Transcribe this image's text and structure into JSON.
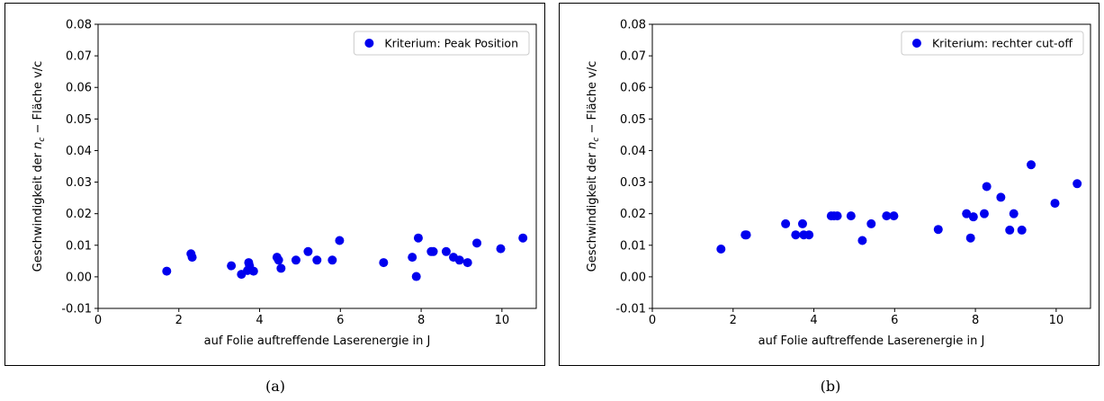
{
  "colors": {
    "marker": "#0000ee",
    "axis": "#000000"
  },
  "chart_data": [
    {
      "type": "scatter",
      "caption": "(a)",
      "xlabel": "auf Folie auftreffende Laserenergie in J",
      "ylabel_pre": "Geschwindigkeit der ",
      "ylabel_var": "n",
      "ylabel_sub": "c",
      "ylabel_post": " − Fläche v/c",
      "xlim": [
        0,
        10.85
      ],
      "ylim": [
        -0.01,
        0.08
      ],
      "xticks": [
        0,
        2,
        4,
        6,
        8,
        10
      ],
      "yticks": [
        -0.01,
        0.0,
        0.01,
        0.02,
        0.03,
        0.04,
        0.05,
        0.06,
        0.07,
        0.08
      ],
      "ytick_labels": [
        "-0.01",
        "0.00",
        "0.01",
        "0.02",
        "0.03",
        "0.04",
        "0.05",
        "0.06",
        "0.07",
        "0.08"
      ],
      "grid": false,
      "legend_position": "top-right",
      "series": [
        {
          "name": "Kriterium: Peak Position",
          "x": [
            1.7,
            2.3,
            2.33,
            3.3,
            3.55,
            3.7,
            3.73,
            3.75,
            3.85,
            4.43,
            4.47,
            4.53,
            4.9,
            5.2,
            5.42,
            5.8,
            5.98,
            7.07,
            7.78,
            7.88,
            7.93,
            8.25,
            8.3,
            8.62,
            8.8,
            8.95,
            9.15,
            9.38,
            9.97,
            10.52
          ],
          "y": [
            0.0018,
            0.0073,
            0.0062,
            0.0035,
            0.0008,
            0.002,
            0.0045,
            0.0035,
            0.0018,
            0.0062,
            0.0053,
            0.0027,
            0.0053,
            0.008,
            0.0053,
            0.0053,
            0.0115,
            0.0045,
            0.0062,
            0.0001,
            0.0123,
            0.008,
            0.008,
            0.008,
            0.0062,
            0.0053,
            0.0045,
            0.0107,
            0.0089,
            0.0123
          ]
        }
      ]
    },
    {
      "type": "scatter",
      "caption": "(b)",
      "xlabel": "auf Folie auftreffende Laserenergie in J",
      "ylabel_pre": "Geschwindigkeit der ",
      "ylabel_var": "n",
      "ylabel_sub": "c",
      "ylabel_post": " − Fläche v/c",
      "xlim": [
        0,
        10.85
      ],
      "ylim": [
        -0.01,
        0.08
      ],
      "xticks": [
        0,
        2,
        4,
        6,
        8,
        10
      ],
      "yticks": [
        -0.01,
        0.0,
        0.01,
        0.02,
        0.03,
        0.04,
        0.05,
        0.06,
        0.07,
        0.08
      ],
      "ytick_labels": [
        "-0.01",
        "0.00",
        "0.01",
        "0.02",
        "0.03",
        "0.04",
        "0.05",
        "0.06",
        "0.07",
        "0.08"
      ],
      "grid": false,
      "legend_position": "top-right",
      "series": [
        {
          "name": "Kriterium: rechter cut-off",
          "x": [
            1.7,
            2.3,
            2.33,
            3.3,
            3.55,
            3.72,
            3.75,
            3.88,
            4.43,
            4.5,
            4.58,
            4.92,
            5.2,
            5.42,
            5.8,
            5.98,
            7.08,
            7.78,
            7.88,
            7.95,
            8.22,
            8.28,
            8.63,
            8.85,
            8.95,
            9.15,
            9.38,
            9.97,
            10.52
          ],
          "y": [
            0.0088,
            0.0133,
            0.0133,
            0.0168,
            0.0133,
            0.0168,
            0.0133,
            0.0133,
            0.0193,
            0.0193,
            0.0193,
            0.0193,
            0.0115,
            0.0168,
            0.0193,
            0.0193,
            0.015,
            0.02,
            0.0123,
            0.019,
            0.02,
            0.0286,
            0.0252,
            0.0148,
            0.02,
            0.0148,
            0.0355,
            0.0233,
            0.0295
          ]
        }
      ]
    }
  ]
}
